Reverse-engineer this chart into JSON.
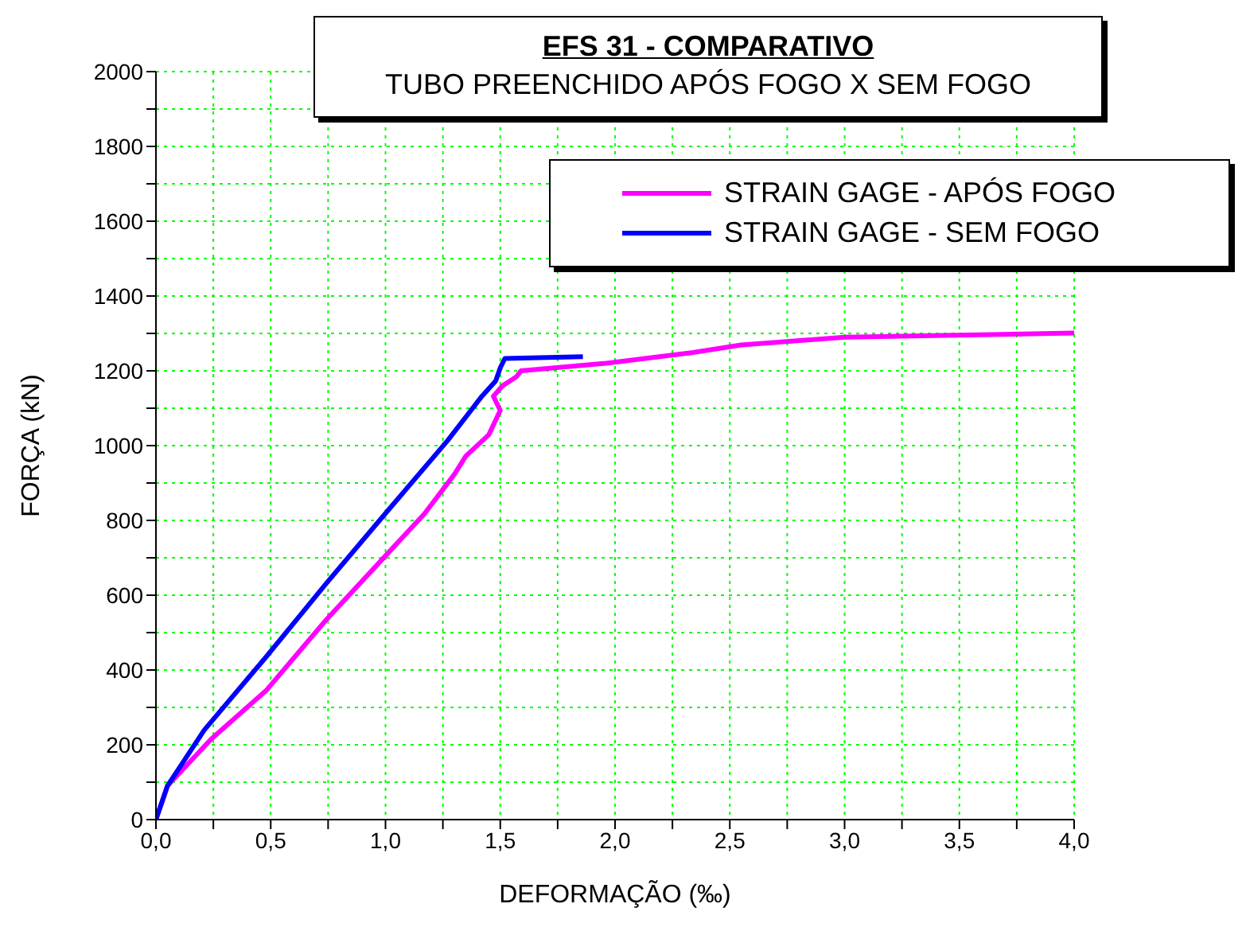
{
  "chart_data": {
    "type": "line",
    "title": "EFS 31 - COMPARATIVO",
    "subtitle": "TUBO PREENCHIDO APÓS FOGO X SEM FOGO",
    "xlabel": "DEFORMAÇÃO (‰)",
    "ylabel": "FORÇA (kN)",
    "xlim": [
      0,
      4
    ],
    "ylim": [
      0,
      2000
    ],
    "xticks": [
      {
        "value": 0,
        "label": "0,0"
      },
      {
        "value": 0.25,
        "label": null
      },
      {
        "value": 0.5,
        "label": "0,5"
      },
      {
        "value": 0.75,
        "label": null
      },
      {
        "value": 1,
        "label": "1,0"
      },
      {
        "value": 1.25,
        "label": null
      },
      {
        "value": 1.5,
        "label": "1,5"
      },
      {
        "value": 1.75,
        "label": null
      },
      {
        "value": 2,
        "label": "2,0"
      },
      {
        "value": 2.25,
        "label": null
      },
      {
        "value": 2.5,
        "label": "2,5"
      },
      {
        "value": 2.75,
        "label": null
      },
      {
        "value": 3,
        "label": "3,0"
      },
      {
        "value": 3.25,
        "label": null
      },
      {
        "value": 3.5,
        "label": "3,5"
      },
      {
        "value": 3.75,
        "label": null
      },
      {
        "value": 4,
        "label": "4,0"
      }
    ],
    "yticks": [
      0,
      {
        "value": 100,
        "label": null
      },
      200,
      {
        "value": 300,
        "label": null
      },
      400,
      {
        "value": 500,
        "label": null
      },
      600,
      {
        "value": 700,
        "label": null
      },
      800,
      {
        "value": 900,
        "label": null
      },
      1000,
      {
        "value": 1100,
        "label": null
      },
      1200,
      {
        "value": 1300,
        "label": null
      },
      1400,
      {
        "value": 1500,
        "label": null
      },
      1600,
      {
        "value": 1700,
        "label": null
      },
      1800,
      {
        "value": 1900,
        "label": null
      },
      2000
    ],
    "grid": true,
    "legend": "top right",
    "marker": "none",
    "line_style": "solid",
    "series": [
      {
        "name": "STRAIN GAGE - APÓS FOGO",
        "color": "#ff00ff",
        "x": [
          0,
          0.05,
          0.24,
          0.48,
          0.74,
          1.01,
          1.17,
          1.3,
          1.35,
          1.45,
          1.5,
          1.47,
          1.51,
          1.57,
          1.59,
          1.96,
          2.34,
          2.55,
          3,
          4
        ],
        "values": [
          0,
          90,
          215,
          345,
          533,
          712,
          818,
          923,
          972,
          1029,
          1094,
          1132,
          1160,
          1184,
          1200,
          1220,
          1249,
          1269,
          1290,
          1301
        ]
      },
      {
        "name": "STRAIN GAGE - SEM FOGO",
        "color": "#0000ff",
        "x": [
          0,
          0.05,
          0.21,
          0.48,
          0.74,
          1.01,
          1.27,
          1.42,
          1.48,
          1.5,
          1.52,
          1.86
        ],
        "values": [
          0,
          90,
          239,
          435,
          630,
          826,
          1013,
          1132,
          1173,
          1208,
          1233,
          1238
        ]
      }
    ]
  }
}
